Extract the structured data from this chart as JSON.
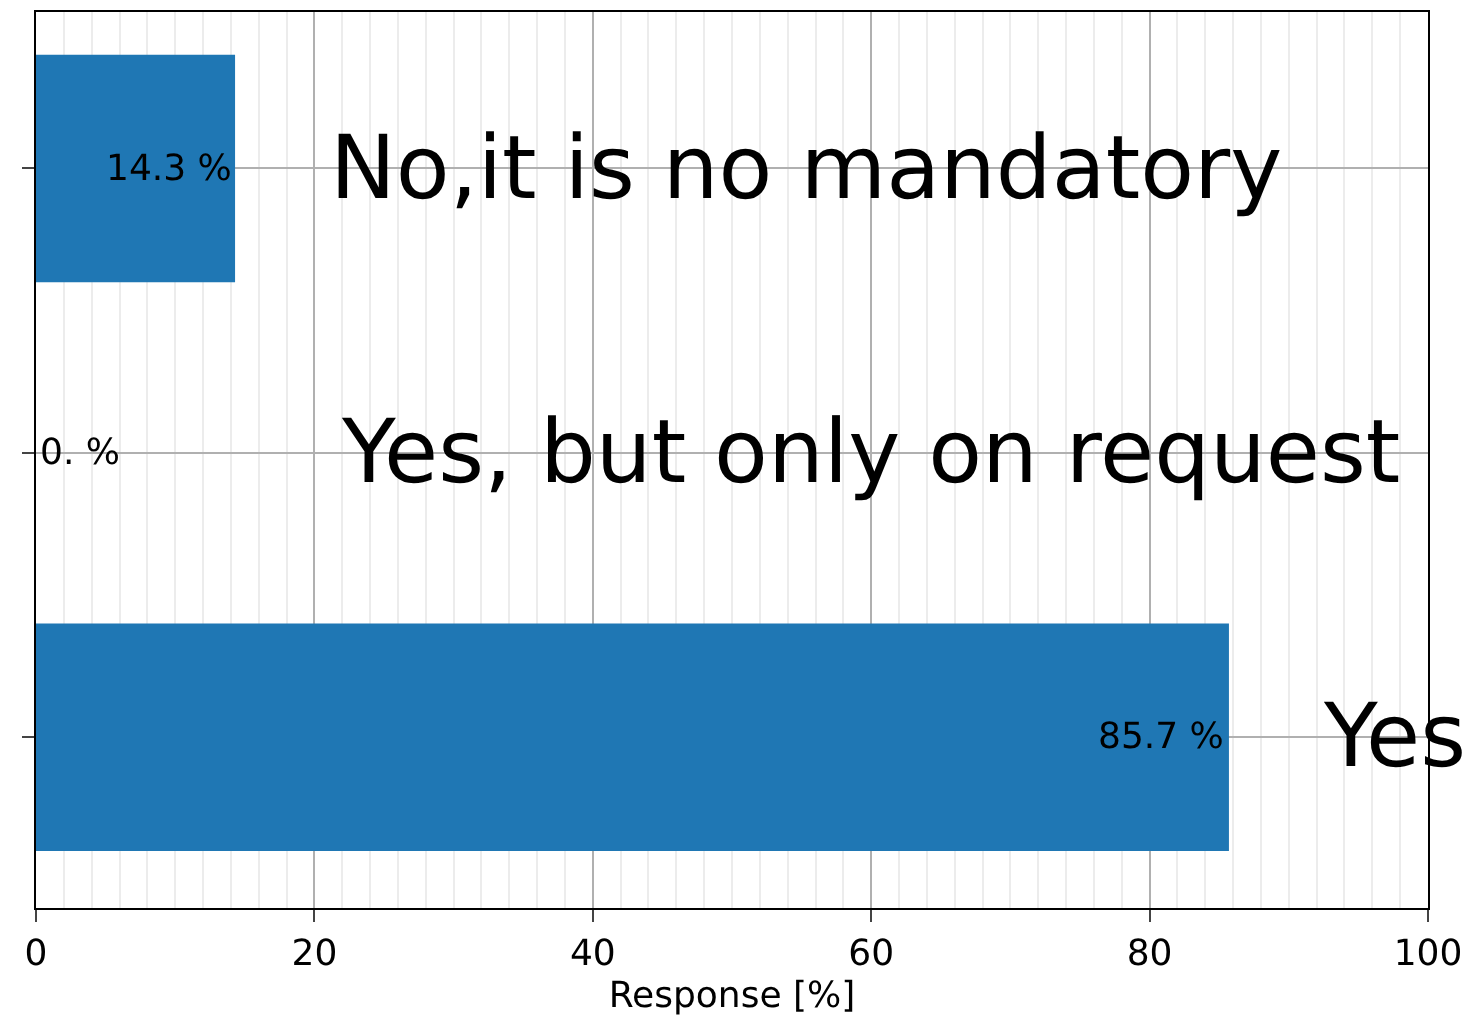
{
  "chart_data": {
    "type": "bar",
    "orientation": "horizontal",
    "xlabel": "Response [%]",
    "categories": [
      "No,it is no mandatory",
      "Yes, but only on request",
      "Yes"
    ],
    "values": [
      14.3,
      0,
      85.7
    ],
    "value_labels": [
      "14.3 %",
      "0. %",
      "85.7 %"
    ],
    "color": "#1f77b4",
    "xlim": [
      0,
      100
    ],
    "xticks": [
      0,
      20,
      40,
      60,
      80,
      100
    ],
    "grid": true,
    "tick_labels": "x"
  }
}
